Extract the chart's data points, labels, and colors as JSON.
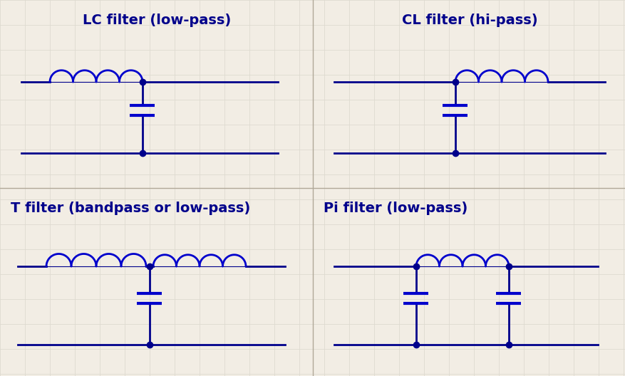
{
  "title_lc": "LC filter (low-pass)",
  "title_cl": "CL filter (hi-pass)",
  "title_t": "T filter (bandpass or low-pass)",
  "title_pi": "Pi filter (low-pass)",
  "line_color": "#00008B",
  "inductor_color": "#0000CC",
  "capacitor_color": "#0000CC",
  "wire_color": "#00008B",
  "title_color": "#00008B",
  "bg_color": "#F2EDE4",
  "grid_color": "#DEDAD0",
  "divider_color": "#B0A898",
  "title_fontsize": 14,
  "lw_wire": 2.0,
  "lw_component": 2.0,
  "dot_size": 6
}
